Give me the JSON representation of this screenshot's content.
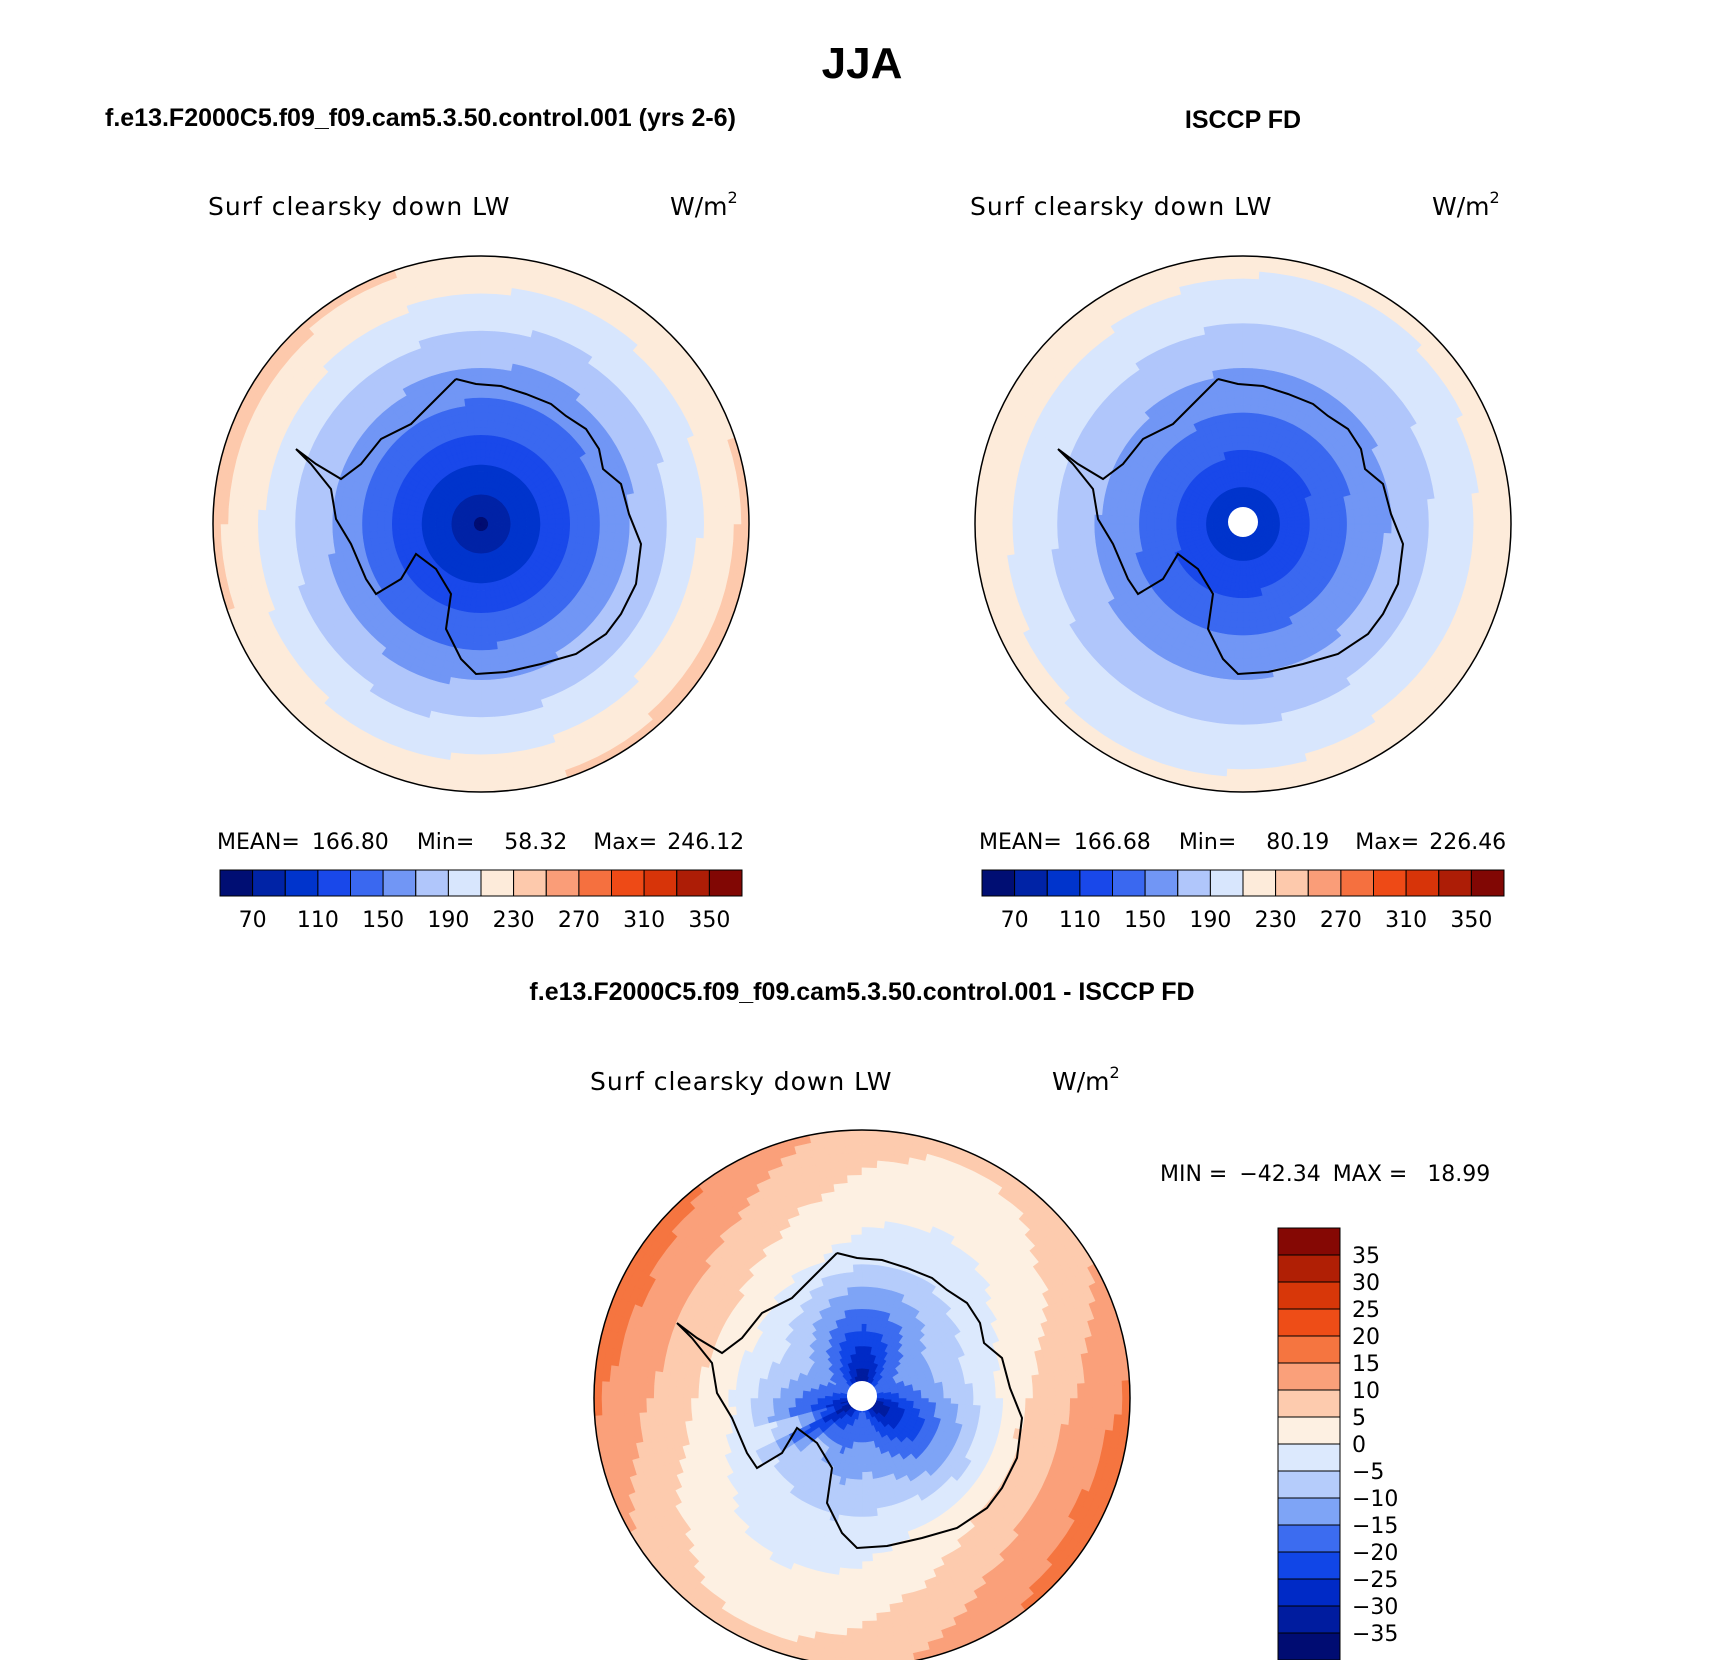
{
  "figure": {
    "title": "JJA",
    "colors": {
      "abs_scale": [
        "#000e73",
        "#0023a6",
        "#0034cc",
        "#1948ea",
        "#3a68f0",
        "#7196f5",
        "#b0c6fb",
        "#d8e6fd",
        "#fdebda",
        "#fdc9ac",
        "#fa9d78",
        "#f5703f",
        "#ee4a16",
        "#d73409",
        "#ad1d06",
        "#810704"
      ],
      "diff_scale": [
        "#000c72",
        "#001c9f",
        "#002ac6",
        "#1146e7",
        "#3c6cf0",
        "#7ea4f6",
        "#b5ccfb",
        "#dce9fd",
        "#fdf0e2",
        "#fdcbae",
        "#faa07a",
        "#f57540",
        "#ee4d17",
        "#d83709",
        "#b01f05",
        "#850804"
      ]
    }
  },
  "chart_data": [
    {
      "type": "heatmap",
      "panel": "model",
      "header": "f.e13.F2000C5.f09_f09.cam5.3.50.control.001 (yrs 2-6)",
      "variable": "Surf clearsky down LW",
      "units_base": "W/m",
      "units_exp": "2",
      "stats": {
        "mean_label": "MEAN=",
        "mean": "166.80",
        "min_label": "Min=",
        "min": "58.32",
        "max_label": "Max=",
        "max": "246.12"
      },
      "colorbar_ticks": [
        "70",
        "110",
        "150",
        "190",
        "230",
        "270",
        "310",
        "350"
      ],
      "levels": [
        50,
        70,
        90,
        110,
        130,
        150,
        170,
        190,
        210,
        230,
        250,
        270,
        290,
        310,
        330,
        350,
        370
      ],
      "field": {
        "pole": 58,
        "edge": 232,
        "coast_bias": 0
      }
    },
    {
      "type": "heatmap",
      "panel": "obs",
      "header": "ISCCP FD",
      "variable": "Surf clearsky down LW",
      "units_base": "W/m",
      "units_exp": "2",
      "stats": {
        "mean_label": "MEAN=",
        "mean": "166.68",
        "min_label": "Min=",
        "min": "80.19",
        "max_label": "Max=",
        "max": "226.46"
      },
      "colorbar_ticks": [
        "70",
        "110",
        "150",
        "190",
        "230",
        "270",
        "310",
        "350"
      ],
      "levels": [
        50,
        70,
        90,
        110,
        130,
        150,
        170,
        190,
        210,
        230,
        250,
        270,
        290,
        310,
        330,
        350,
        370
      ],
      "field": {
        "pole": 82,
        "edge": 222,
        "coast_bias": 0
      }
    },
    {
      "type": "heatmap",
      "panel": "difference",
      "header": "f.e13.F2000C5.f09_f09.cam5.3.50.control.001 - ISCCP FD",
      "variable": "Surf clearsky down LW",
      "units_base": "W/m",
      "units_exp": "2",
      "stats": {
        "min_label": "MIN =",
        "min": "−42.34",
        "max_label": "MAX =",
        "max": "18.99"
      },
      "colorbar_ticks": [
        "35",
        "30",
        "25",
        "20",
        "15",
        "10",
        "5",
        "0",
        "−5",
        "−10",
        "−15",
        "−20",
        "−25",
        "−30",
        "−35"
      ],
      "levels": [
        -40,
        -35,
        -30,
        -25,
        -20,
        -15,
        -10,
        -5,
        0,
        5,
        10,
        15,
        20,
        25,
        30,
        35,
        40
      ],
      "field": {
        "pole": -18,
        "edge": 12,
        "coast_bias": -22
      }
    }
  ]
}
